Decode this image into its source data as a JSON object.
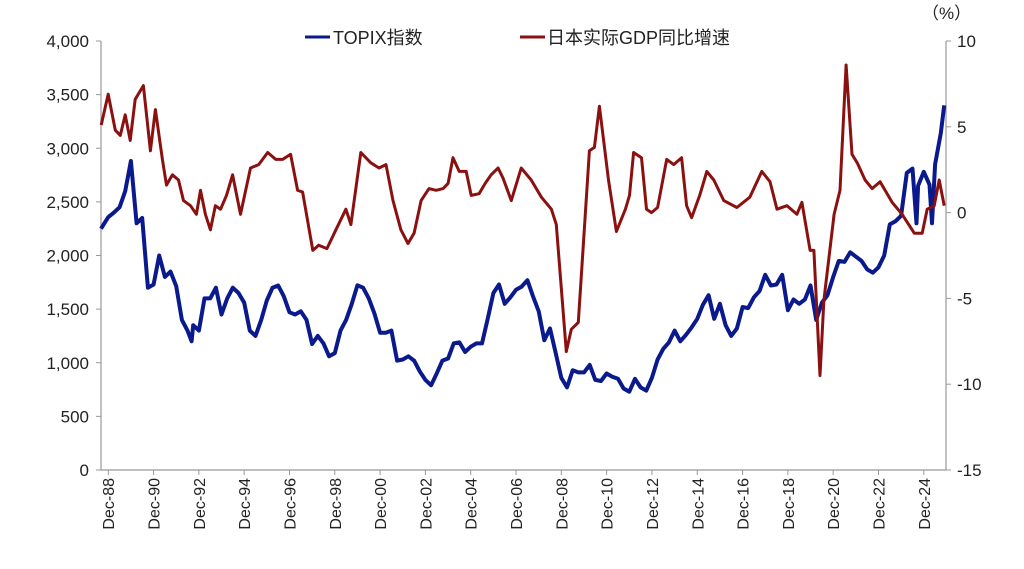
{
  "chart_data": {
    "type": "line",
    "title": "",
    "right_axis_unit": "（%）",
    "left_axis": {
      "ylim": [
        0,
        4000
      ],
      "ticks": [
        0,
        500,
        1000,
        1500,
        2000,
        2500,
        3000,
        3500,
        4000
      ],
      "tick_labels": [
        "0",
        "500",
        "1,000",
        "1,500",
        "2,000",
        "2,500",
        "3,000",
        "3,500",
        "4,000"
      ]
    },
    "right_axis": {
      "ylim": [
        -15,
        10
      ],
      "ticks": [
        -15,
        -10,
        -5,
        0,
        5,
        10
      ],
      "tick_labels": [
        "-15",
        "-10",
        "-5",
        "0",
        "5",
        "10"
      ]
    },
    "x_axis": {
      "xlim": [
        1988.6,
        2025.9
      ],
      "ticks": [
        1988.92,
        1990.92,
        1992.92,
        1994.92,
        1996.92,
        1998.92,
        2000.92,
        2002.92,
        2004.92,
        2006.92,
        2008.92,
        2010.92,
        2012.92,
        2014.92,
        2016.92,
        2018.92,
        2020.92,
        2022.92,
        2024.92
      ],
      "tick_labels": [
        "Dec-88",
        "Dec-90",
        "Dec-92",
        "Dec-94",
        "Dec-96",
        "Dec-98",
        "Dec-00",
        "Dec-02",
        "Dec-04",
        "Dec-06",
        "Dec-08",
        "Dec-10",
        "Dec-12",
        "Dec-14",
        "Dec-16",
        "Dec-18",
        "Dec-20",
        "Dec-22",
        "Dec-24"
      ]
    },
    "grid": false,
    "legend": {
      "placement": "top-center",
      "entries": [
        "TOPIX指数",
        "日本实际GDP同比增速"
      ]
    },
    "series": [
      {
        "name": "TOPIX指数",
        "axis": "left",
        "color": "#0a1a8c",
        "x": [
          1988.6,
          1988.92,
          1989.17,
          1989.42,
          1989.67,
          1989.92,
          1990.17,
          1990.42,
          1990.67,
          1990.92,
          1991.17,
          1991.42,
          1991.67,
          1991.92,
          1992.17,
          1992.42,
          1992.6,
          1992.67,
          1992.92,
          1993.17,
          1993.42,
          1993.67,
          1993.92,
          1994.17,
          1994.42,
          1994.67,
          1994.92,
          1995.17,
          1995.42,
          1995.67,
          1995.92,
          1996.17,
          1996.42,
          1996.67,
          1996.92,
          1997.17,
          1997.42,
          1997.67,
          1997.92,
          1998.17,
          1998.42,
          1998.67,
          1998.92,
          1999.17,
          1999.42,
          1999.67,
          1999.92,
          2000.17,
          2000.42,
          2000.67,
          2000.92,
          2001.17,
          2001.42,
          2001.67,
          2001.92,
          2002.17,
          2002.42,
          2002.67,
          2002.92,
          2003.17,
          2003.42,
          2003.67,
          2003.92,
          2004.17,
          2004.42,
          2004.67,
          2004.92,
          2005.17,
          2005.42,
          2005.67,
          2005.92,
          2006.17,
          2006.42,
          2006.67,
          2006.92,
          2007.17,
          2007.42,
          2007.67,
          2007.92,
          2008.17,
          2008.42,
          2008.67,
          2008.92,
          2009.17,
          2009.42,
          2009.67,
          2009.92,
          2010.17,
          2010.42,
          2010.67,
          2010.92,
          2011.17,
          2011.42,
          2011.67,
          2011.92,
          2012.17,
          2012.42,
          2012.67,
          2012.92,
          2013.17,
          2013.42,
          2013.67,
          2013.92,
          2014.17,
          2014.42,
          2014.67,
          2014.92,
          2015.17,
          2015.42,
          2015.67,
          2015.92,
          2016.17,
          2016.42,
          2016.67,
          2016.92,
          2017.17,
          2017.42,
          2017.67,
          2017.92,
          2018.17,
          2018.42,
          2018.67,
          2018.92,
          2019.17,
          2019.42,
          2019.67,
          2019.92,
          2020.17,
          2020.42,
          2020.67,
          2020.92,
          2021.17,
          2021.42,
          2021.67,
          2021.92,
          2022.17,
          2022.42,
          2022.67,
          2022.92,
          2023.17,
          2023.42,
          2023.67,
          2023.92,
          2024.17,
          2024.42,
          2024.6,
          2024.67,
          2024.92,
          2025.17,
          2025.28,
          2025.42,
          2025.67,
          2025.82
        ],
        "y": [
          2250,
          2357,
          2400,
          2450,
          2600,
          2881,
          2300,
          2350,
          1700,
          1730,
          2000,
          1800,
          1850,
          1715,
          1400,
          1300,
          1200,
          1350,
          1300,
          1600,
          1600,
          1700,
          1450,
          1600,
          1700,
          1650,
          1560,
          1300,
          1250,
          1400,
          1580,
          1700,
          1720,
          1620,
          1470,
          1450,
          1480,
          1400,
          1175,
          1250,
          1180,
          1060,
          1090,
          1300,
          1400,
          1550,
          1722,
          1700,
          1600,
          1460,
          1280,
          1280,
          1300,
          1020,
          1030,
          1060,
          1020,
          920,
          840,
          790,
          900,
          1020,
          1040,
          1180,
          1190,
          1100,
          1150,
          1180,
          1180,
          1410,
          1650,
          1730,
          1550,
          1610,
          1680,
          1710,
          1770,
          1620,
          1480,
          1210,
          1320,
          1090,
          860,
          770,
          930,
          910,
          910,
          980,
          840,
          830,
          900,
          870,
          850,
          760,
          730,
          850,
          770,
          740,
          860,
          1030,
          1130,
          1190,
          1300,
          1200,
          1260,
          1330,
          1410,
          1540,
          1630,
          1410,
          1550,
          1350,
          1250,
          1320,
          1520,
          1510,
          1610,
          1670,
          1820,
          1720,
          1730,
          1820,
          1490,
          1590,
          1550,
          1590,
          1720,
          1400,
          1560,
          1630,
          1800,
          1950,
          1940,
          2030,
          1990,
          1950,
          1870,
          1840,
          1890,
          2000,
          2290,
          2320,
          2370,
          2770,
          2810,
          2300,
          2650,
          2780,
          2660,
          2300,
          2850,
          3140,
          3400
        ]
      },
      {
        "name": "日本实际GDP同比增速",
        "axis": "right",
        "color": "#8b1111",
        "x": [
          1988.61,
          1988.92,
          1989.23,
          1989.45,
          1989.67,
          1989.89,
          1990.11,
          1990.47,
          1990.78,
          1991.0,
          1991.31,
          1991.49,
          1991.75,
          1992.02,
          1992.24,
          1992.55,
          1992.81,
          1992.99,
          1993.21,
          1993.43,
          1993.65,
          1993.88,
          1994.14,
          1994.41,
          1994.76,
          1995.2,
          1995.56,
          1995.96,
          1996.31,
          1996.62,
          1996.97,
          1997.28,
          1997.5,
          1997.95,
          1998.21,
          1998.57,
          1998.97,
          1999.41,
          1999.63,
          2000.07,
          2000.51,
          2000.87,
          2001.18,
          2001.49,
          2001.84,
          2002.15,
          2002.42,
          2002.73,
          2003.08,
          2003.39,
          2003.7,
          2003.92,
          2004.14,
          2004.41,
          2004.72,
          2004.94,
          2005.29,
          2005.56,
          2005.82,
          2006.13,
          2006.35,
          2006.71,
          2007.15,
          2007.59,
          2008.04,
          2008.48,
          2008.7,
          2009.14,
          2009.36,
          2009.67,
          2010.16,
          2010.38,
          2010.6,
          2011.0,
          2011.35,
          2011.75,
          2011.93,
          2012.11,
          2012.46,
          2012.68,
          2012.9,
          2013.17,
          2013.57,
          2013.88,
          2014.23,
          2014.45,
          2014.67,
          2015.03,
          2015.34,
          2015.65,
          2016.09,
          2016.67,
          2017.24,
          2017.77,
          2018.13,
          2018.44,
          2018.88,
          2019.32,
          2019.54,
          2019.9,
          2020.07,
          2020.34,
          2020.51,
          2020.96,
          2021.22,
          2021.49,
          2021.75,
          2021.98,
          2022.33,
          2022.64,
          2022.99,
          2023.52,
          2023.96,
          2024.5,
          2024.85,
          2025.07,
          2025.38,
          2025.6,
          2025.82
        ],
        "y": [
          5.1,
          6.9,
          4.8,
          4.5,
          5.7,
          4.2,
          6.6,
          7.4,
          3.6,
          6.0,
          3.1,
          1.6,
          2.2,
          1.9,
          0.7,
          0.4,
          -0.1,
          1.3,
          -0.1,
          -1.0,
          0.4,
          0.2,
          1.0,
          2.2,
          -0.1,
          2.6,
          2.8,
          3.5,
          3.1,
          3.1,
          3.4,
          1.3,
          1.2,
          -2.2,
          -1.9,
          -2.1,
          -1.0,
          0.2,
          -0.7,
          3.5,
          2.9,
          2.6,
          2.8,
          0.7,
          -1.0,
          -1.8,
          -1.2,
          0.7,
          1.4,
          1.3,
          1.4,
          1.7,
          3.2,
          2.4,
          2.4,
          1.0,
          1.1,
          1.7,
          2.2,
          2.6,
          2.0,
          0.7,
          2.6,
          1.9,
          0.9,
          0.2,
          -0.7,
          -8.1,
          -6.8,
          -6.4,
          3.6,
          3.8,
          6.2,
          1.9,
          -1.1,
          0.2,
          1.0,
          3.5,
          3.2,
          0.2,
          0.0,
          0.3,
          3.1,
          2.8,
          3.2,
          0.4,
          -0.3,
          1.0,
          2.4,
          1.9,
          0.7,
          0.3,
          0.9,
          2.4,
          1.8,
          0.2,
          0.4,
          -0.1,
          0.6,
          -2.2,
          -2.2,
          -9.5,
          -5.1,
          -0.1,
          1.3,
          8.6,
          3.4,
          2.9,
          1.9,
          1.4,
          1.8,
          0.6,
          -0.1,
          -1.2,
          -1.2,
          0.2,
          0.4,
          1.9,
          0.4
        ]
      }
    ]
  }
}
